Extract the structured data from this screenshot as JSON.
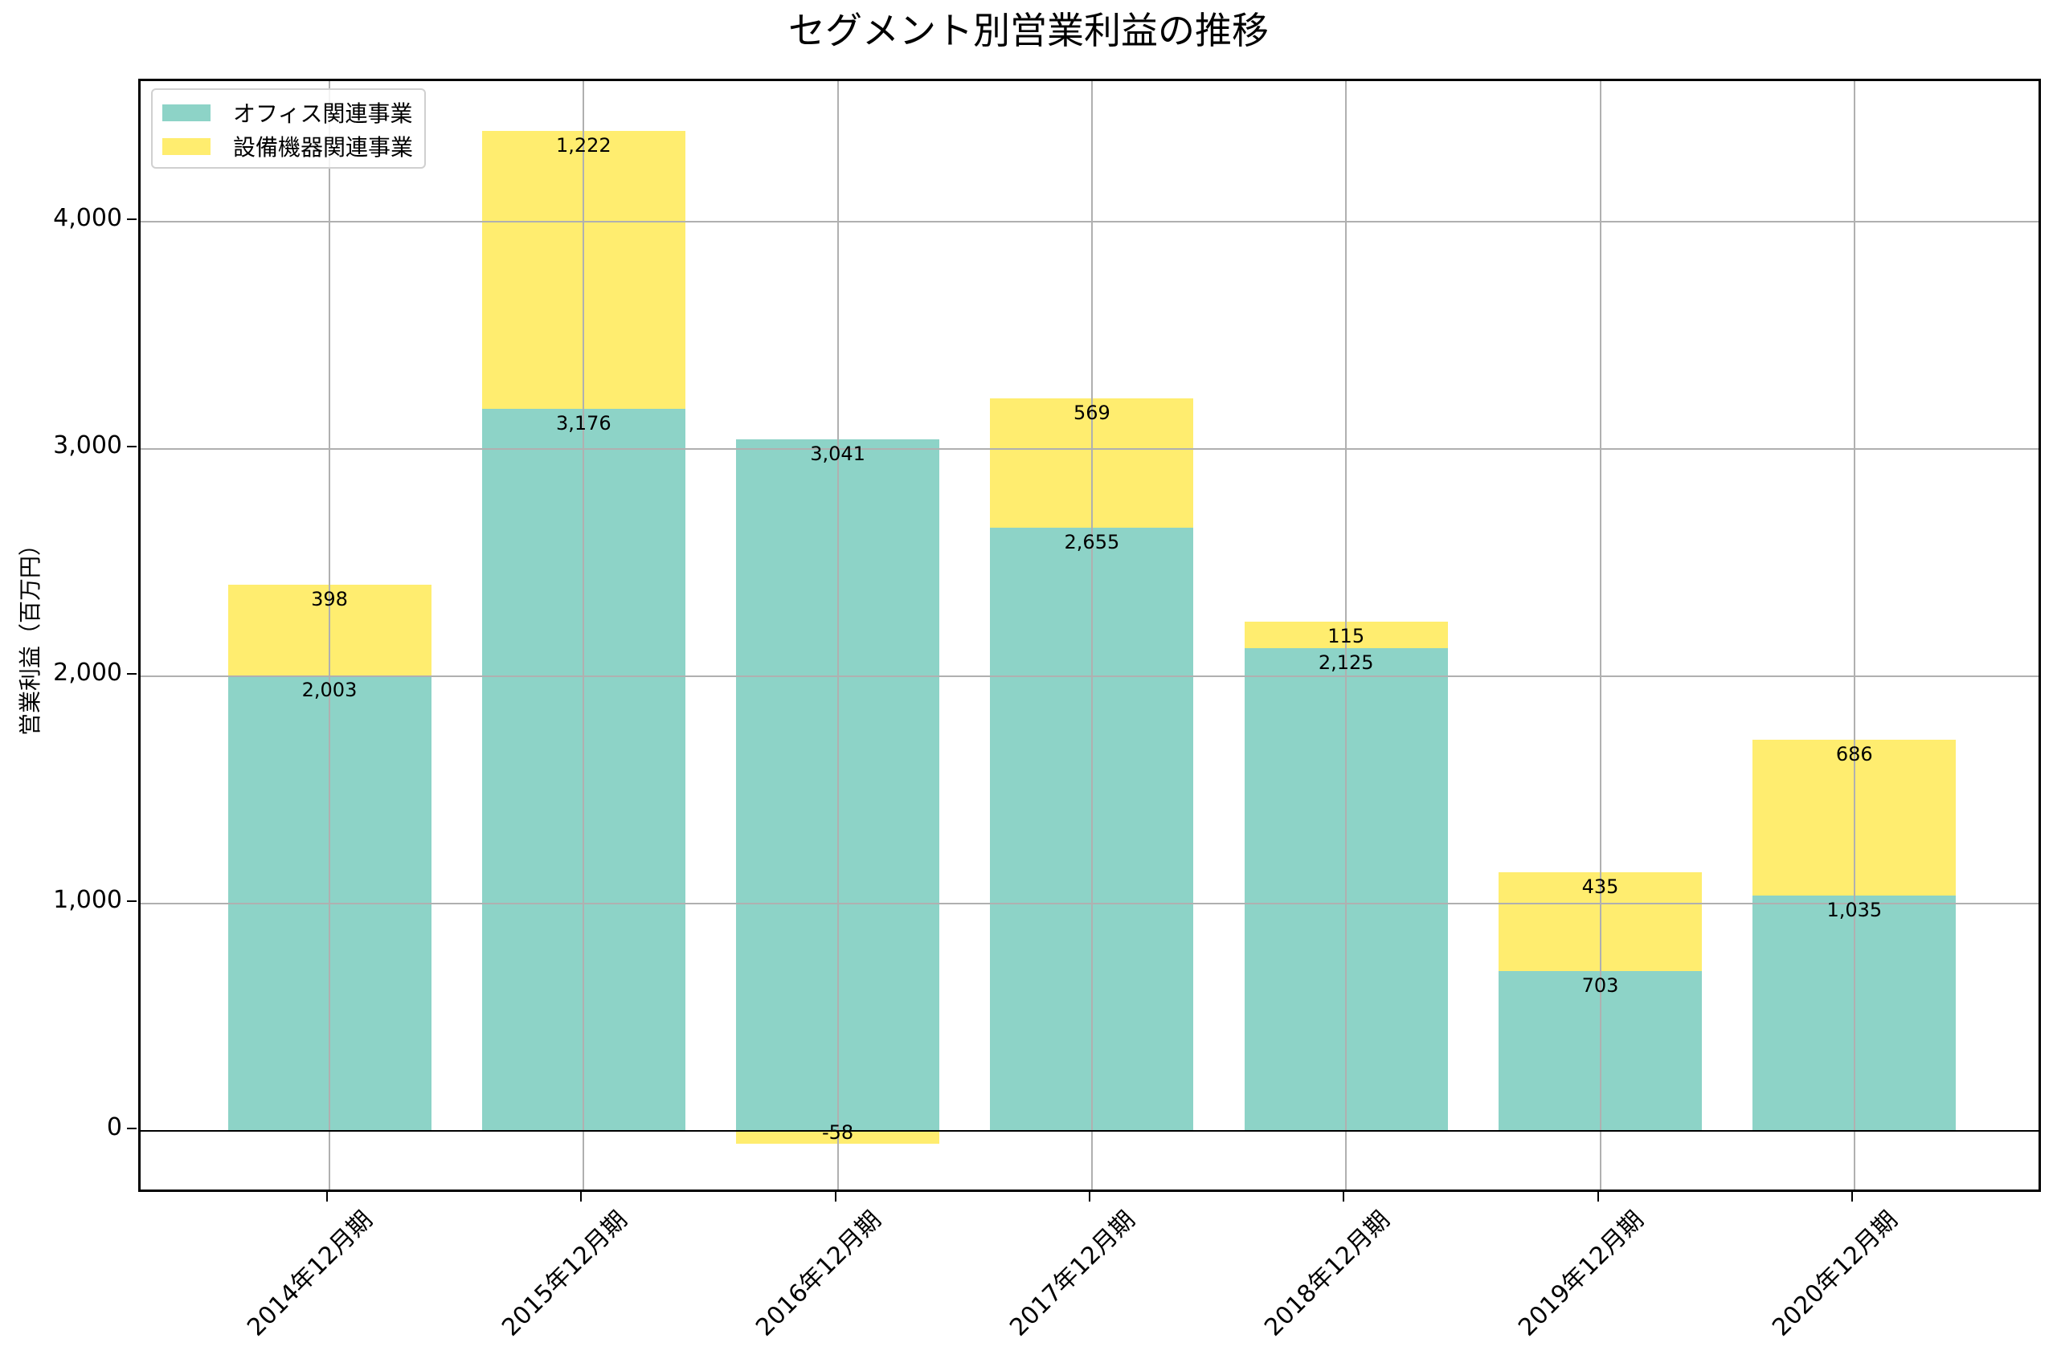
{
  "title": "セグメント別営業利益の推移",
  "chart_data": {
    "type": "bar",
    "stacked": true,
    "title": "セグメント別営業利益の推移",
    "xlabel": "",
    "ylabel": "営業利益（百万円）",
    "categories": [
      "2014年12月期",
      "2015年12月期",
      "2016年12月期",
      "2017年12月期",
      "2018年12月期",
      "2019年12月期",
      "2020年12月期"
    ],
    "series": [
      {
        "name": "オフィス関連事業",
        "color": "#8dd3c7",
        "values": [
          2003,
          3176,
          3041,
          2655,
          2125,
          703,
          1035
        ]
      },
      {
        "name": "設備機器関連事業",
        "color": "#ffed6f",
        "values": [
          398,
          1222,
          -58,
          569,
          115,
          435,
          686
        ]
      }
    ],
    "data_labels": {
      "オフィス関連事業": [
        "2,003",
        "3,176",
        "3,041",
        "2,655",
        "2,125",
        "703",
        "1,035"
      ],
      "設備機器関連事業": [
        "398",
        "1,222",
        "-58",
        "569",
        "115",
        "435",
        "686"
      ]
    },
    "yticks": [
      0,
      1000,
      2000,
      3000,
      4000
    ],
    "ytick_labels": [
      "0",
      "1,000",
      "2,000",
      "3,000",
      "4,000"
    ],
    "ylim": [
      -279,
      4618
    ],
    "grid": true,
    "legend_position": "upper left",
    "xtick_rotation": 45
  },
  "legend": [
    {
      "label": "オフィス関連事業",
      "color": "#8dd3c7"
    },
    {
      "label": "設備機器関連事業",
      "color": "#ffed6f"
    }
  ]
}
